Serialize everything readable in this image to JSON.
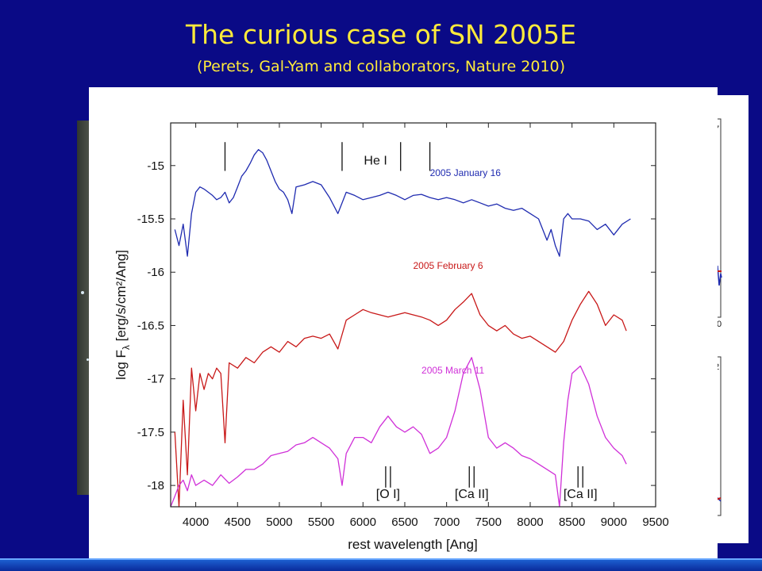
{
  "slide": {
    "title": "The curious case of SN 2005E",
    "subtitle": "(Perets, Gal-Yam and collaborators, Nature 2010)"
  },
  "side_panel": {
    "tick_labels": [
      "7",
      "0",
      "2"
    ]
  },
  "chart_data": {
    "type": "line",
    "xlabel": "rest wavelength [Ang]",
    "ylabel": "log F",
    "ylabel_subscript": "λ",
    "ylabel_units": " [erg/s/cm²/Ang]",
    "xlim": [
      3700,
      9500
    ],
    "ylim": [
      -18.2,
      -14.6
    ],
    "xticks": [
      4000,
      4500,
      5000,
      5500,
      6000,
      6500,
      7000,
      7500,
      8000,
      8500,
      9000,
      9500
    ],
    "yticks": [
      -15,
      -15.5,
      -16,
      -16.5,
      -17,
      -17.5,
      -18
    ],
    "series": [
      {
        "name": "2005 January 16",
        "color": "#1f2bb0",
        "x": [
          3750,
          3800,
          3850,
          3900,
          3950,
          4000,
          4050,
          4100,
          4150,
          4200,
          4250,
          4300,
          4350,
          4400,
          4450,
          4500,
          4550,
          4600,
          4650,
          4700,
          4750,
          4800,
          4850,
          4900,
          4950,
          5000,
          5050,
          5100,
          5150,
          5200,
          5300,
          5400,
          5500,
          5600,
          5700,
          5750,
          5800,
          5900,
          6000,
          6100,
          6200,
          6300,
          6400,
          6500,
          6600,
          6700,
          6800,
          6900,
          7000,
          7100,
          7200,
          7300,
          7400,
          7500,
          7600,
          7700,
          7800,
          7900,
          8000,
          8100,
          8200,
          8250,
          8300,
          8350,
          8400,
          8450,
          8500,
          8600,
          8700,
          8800,
          8900,
          9000,
          9100,
          9200
        ],
        "values": [
          -15.6,
          -15.75,
          -15.55,
          -15.85,
          -15.45,
          -15.25,
          -15.2,
          -15.22,
          -15.25,
          -15.28,
          -15.32,
          -15.3,
          -15.25,
          -15.35,
          -15.3,
          -15.2,
          -15.1,
          -15.05,
          -14.98,
          -14.9,
          -14.85,
          -14.88,
          -14.95,
          -15.05,
          -15.15,
          -15.22,
          -15.25,
          -15.32,
          -15.45,
          -15.2,
          -15.18,
          -15.15,
          -15.18,
          -15.3,
          -15.45,
          -15.35,
          -15.25,
          -15.28,
          -15.32,
          -15.3,
          -15.28,
          -15.25,
          -15.28,
          -15.32,
          -15.28,
          -15.27,
          -15.3,
          -15.32,
          -15.3,
          -15.32,
          -15.35,
          -15.32,
          -15.35,
          -15.38,
          -15.36,
          -15.4,
          -15.42,
          -15.4,
          -15.45,
          -15.5,
          -15.7,
          -15.6,
          -15.75,
          -15.85,
          -15.5,
          -15.45,
          -15.5,
          -15.5,
          -15.52,
          -15.6,
          -15.55,
          -15.65,
          -15.55,
          -15.5
        ]
      },
      {
        "name": "2005 February 6",
        "color": "#c81818",
        "x": [
          3750,
          3800,
          3850,
          3900,
          3950,
          4000,
          4050,
          4100,
          4150,
          4200,
          4250,
          4300,
          4350,
          4400,
          4500,
          4600,
          4700,
          4800,
          4900,
          5000,
          5100,
          5200,
          5300,
          5400,
          5500,
          5600,
          5700,
          5800,
          5900,
          6000,
          6100,
          6200,
          6300,
          6400,
          6500,
          6600,
          6700,
          6800,
          6900,
          7000,
          7100,
          7200,
          7300,
          7400,
          7500,
          7600,
          7700,
          7800,
          7900,
          8000,
          8100,
          8200,
          8300,
          8400,
          8500,
          8600,
          8700,
          8800,
          8900,
          9000,
          9100,
          9150
        ],
        "values": [
          -17.5,
          -18.2,
          -17.2,
          -17.9,
          -16.9,
          -17.3,
          -16.95,
          -17.1,
          -16.95,
          -17.0,
          -16.9,
          -16.95,
          -17.6,
          -16.85,
          -16.9,
          -16.8,
          -16.85,
          -16.75,
          -16.7,
          -16.75,
          -16.65,
          -16.7,
          -16.62,
          -16.6,
          -16.62,
          -16.58,
          -16.72,
          -16.45,
          -16.4,
          -16.35,
          -16.38,
          -16.4,
          -16.42,
          -16.4,
          -16.38,
          -16.4,
          -16.42,
          -16.45,
          -16.5,
          -16.45,
          -16.35,
          -16.28,
          -16.2,
          -16.4,
          -16.5,
          -16.55,
          -16.5,
          -16.58,
          -16.62,
          -16.6,
          -16.65,
          -16.7,
          -16.75,
          -16.65,
          -16.45,
          -16.3,
          -16.18,
          -16.3,
          -16.5,
          -16.4,
          -16.45,
          -16.55
        ]
      },
      {
        "name": "2005 March 11",
        "color": "#d030d8",
        "x": [
          3700,
          3750,
          3800,
          3850,
          3900,
          3950,
          4000,
          4100,
          4200,
          4300,
          4400,
          4500,
          4600,
          4700,
          4800,
          4900,
          5000,
          5100,
          5200,
          5300,
          5400,
          5500,
          5600,
          5700,
          5750,
          5800,
          5900,
          6000,
          6100,
          6200,
          6300,
          6400,
          6500,
          6600,
          6700,
          6800,
          6900,
          7000,
          7100,
          7200,
          7300,
          7400,
          7500,
          7600,
          7700,
          7800,
          7900,
          8000,
          8100,
          8200,
          8300,
          8350,
          8400,
          8450,
          8500,
          8600,
          8700,
          8800,
          8900,
          9000,
          9100,
          9150
        ],
        "values": [
          -18.2,
          -18.1,
          -18.0,
          -17.95,
          -18.05,
          -17.9,
          -18.0,
          -17.95,
          -18.0,
          -17.9,
          -17.98,
          -17.92,
          -17.85,
          -17.85,
          -17.8,
          -17.72,
          -17.7,
          -17.68,
          -17.62,
          -17.6,
          -17.55,
          -17.6,
          -17.65,
          -17.75,
          -18.0,
          -17.7,
          -17.55,
          -17.55,
          -17.6,
          -17.45,
          -17.35,
          -17.45,
          -17.5,
          -17.45,
          -17.52,
          -17.7,
          -17.65,
          -17.55,
          -17.3,
          -16.95,
          -16.8,
          -17.1,
          -17.55,
          -17.65,
          -17.6,
          -17.65,
          -17.72,
          -17.75,
          -17.8,
          -17.85,
          -17.9,
          -18.2,
          -17.6,
          -17.2,
          -16.95,
          -16.88,
          -17.05,
          -17.35,
          -17.55,
          -17.65,
          -17.72,
          -17.8
        ]
      }
    ],
    "annotations": {
      "he_label": "He I",
      "he_markers": [
        4350,
        5750,
        6450,
        6800
      ],
      "line_ids": [
        {
          "label": "[O I]",
          "x": 6300
        },
        {
          "label": "[Ca II]",
          "x": 7300
        },
        {
          "label": "[Ca II]",
          "x": 8600
        }
      ]
    }
  }
}
